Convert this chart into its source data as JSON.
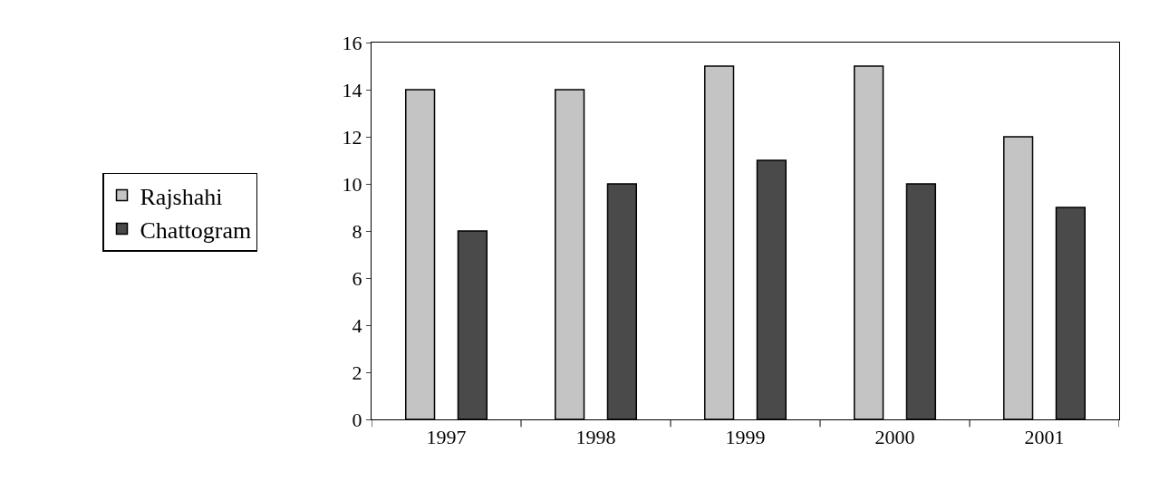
{
  "chart_data": {
    "type": "bar",
    "categories": [
      "1997",
      "1998",
      "1999",
      "2000",
      "2001"
    ],
    "series": [
      {
        "name": "Rajshahi",
        "color": "#c4c4c4",
        "values": [
          14,
          14,
          15,
          15,
          12
        ]
      },
      {
        "name": "Chattogram",
        "color": "#4a4a4a",
        "values": [
          8,
          10,
          11,
          10,
          9
        ]
      }
    ],
    "ylim": [
      0,
      16
    ],
    "yticks": [
      0,
      2,
      4,
      6,
      8,
      10,
      12,
      14,
      16
    ],
    "grid": false,
    "legend": "left"
  }
}
